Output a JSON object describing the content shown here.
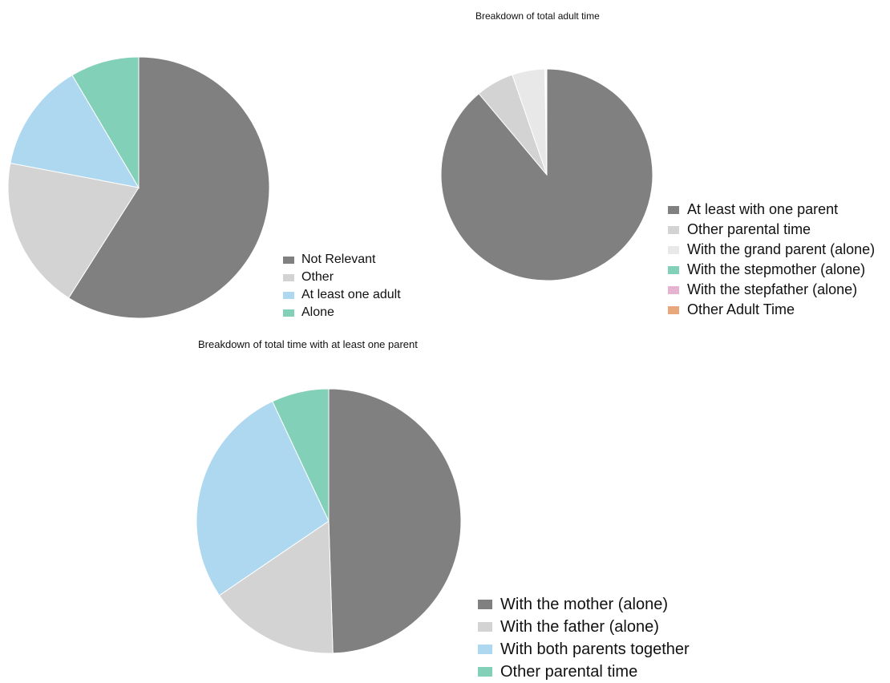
{
  "chart_data": [
    {
      "type": "pie",
      "title": "",
      "legend_position": "bottom-right",
      "slices": [
        {
          "label": "Not Relevant",
          "value": 59,
          "color": "#808080"
        },
        {
          "label": "Other",
          "value": 19,
          "color": "#d3d3d3"
        },
        {
          "label": "At least one adult",
          "value": 13.5,
          "color": "#add8f0"
        },
        {
          "label": "Alone",
          "value": 8.5,
          "color": "#82d0b8"
        }
      ]
    },
    {
      "type": "pie",
      "title": "Breakdown of total adult time",
      "legend_position": "right",
      "slices": [
        {
          "label": "At least with one parent",
          "value": 88.9,
          "color": "#808080"
        },
        {
          "label": "Other parental time",
          "value": 5.8,
          "color": "#d3d3d3"
        },
        {
          "label": "With the grand parent (alone)",
          "value": 5.0,
          "color": "#e8e8e8"
        },
        {
          "label": "With the stepmother (alone)",
          "value": 0.1,
          "color": "#82d0b8"
        },
        {
          "label": "With the stepfather (alone)",
          "value": 0.15,
          "color": "#e6b3d0"
        },
        {
          "label": "Other Adult Time",
          "value": 0.05,
          "color": "#e8a87c"
        }
      ]
    },
    {
      "type": "pie",
      "title": "Breakdown of total time with at least one parent",
      "legend_position": "bottom-right",
      "slices": [
        {
          "label": "With the mother (alone)",
          "value": 49.5,
          "color": "#808080"
        },
        {
          "label": "With the father (alone)",
          "value": 16,
          "color": "#d3d3d3"
        },
        {
          "label": "With both parents together",
          "value": 27.5,
          "color": "#add8f0"
        },
        {
          "label": "Other parental time",
          "value": 7,
          "color": "#82d0b8"
        }
      ]
    }
  ]
}
